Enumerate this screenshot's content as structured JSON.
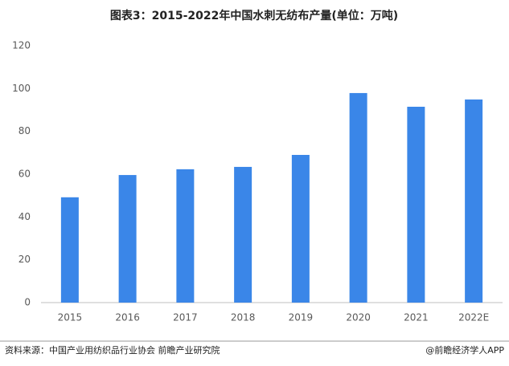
{
  "chart_data": {
    "type": "bar",
    "title": "图表3：2015-2022年中国水刺无纺布产量(单位：万吨)",
    "categories": [
      "2015",
      "2016",
      "2017",
      "2018",
      "2019",
      "2020",
      "2021",
      "2022E"
    ],
    "values": [
      49.2,
      59.6,
      62.3,
      63.4,
      69.0,
      97.9,
      91.5,
      94.9
    ],
    "color": "#3a86e8",
    "ylim": [
      0,
      120
    ],
    "yticks": [
      0,
      20,
      40,
      60,
      80,
      100,
      120
    ],
    "grid": false,
    "source": "资料来源：中国产业用纺织品行业协会 前瞻产业研究院",
    "credit": "@前瞻经济学人APP"
  }
}
